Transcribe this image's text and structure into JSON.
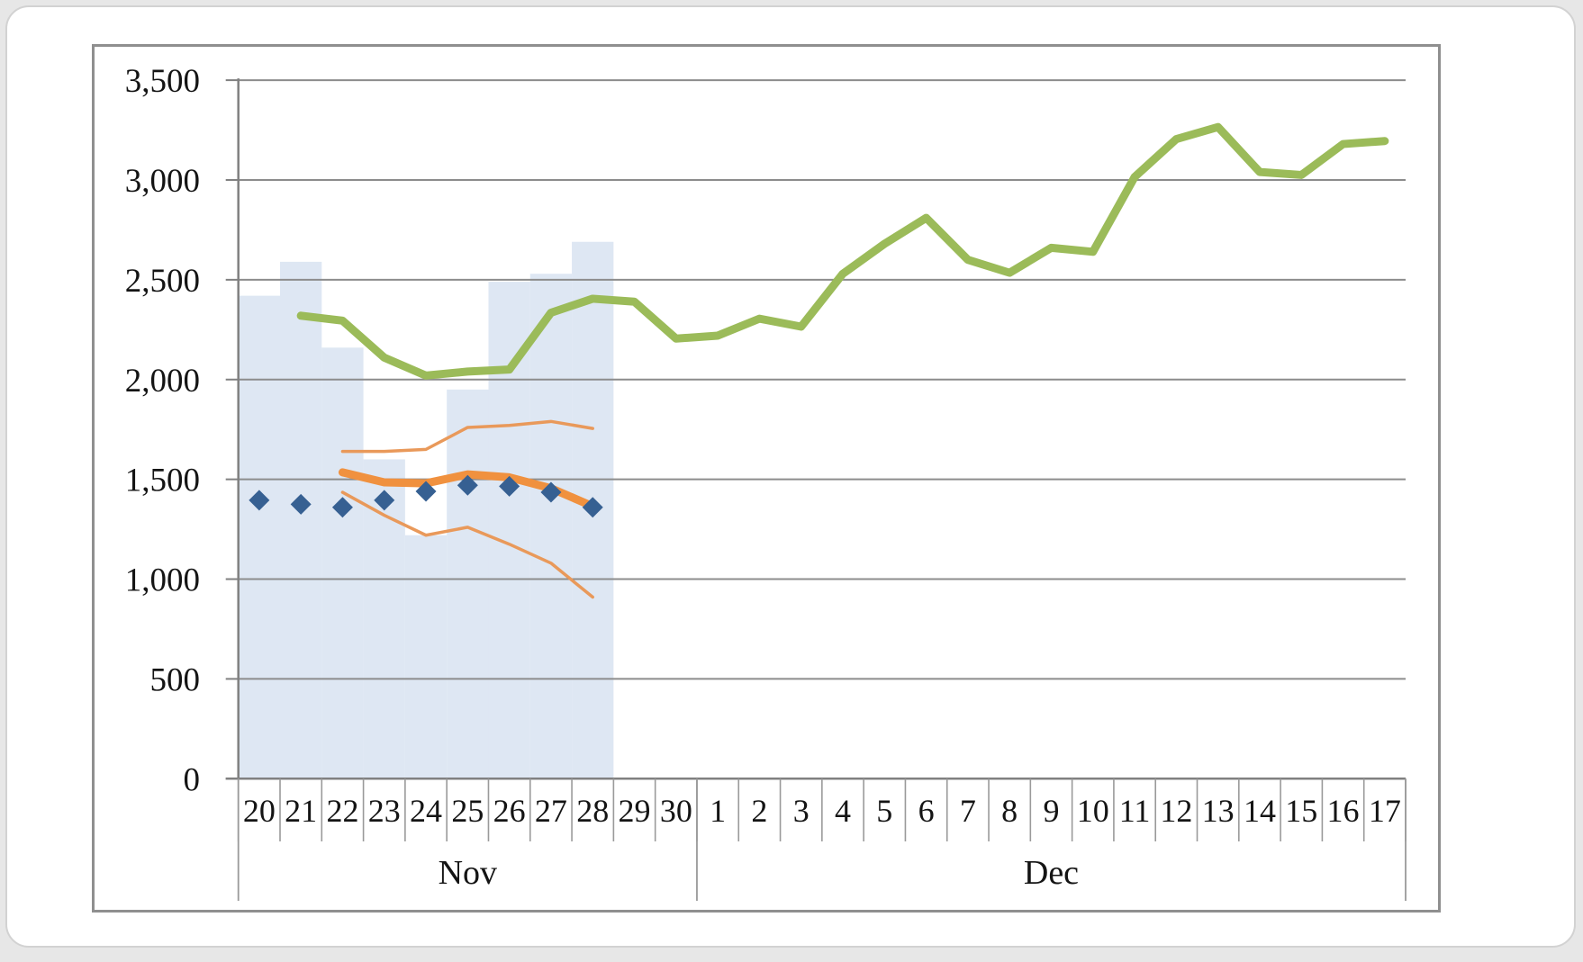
{
  "chart_data": {
    "type": "line",
    "title": "",
    "grid": true,
    "legend": false,
    "y_axis": {
      "min": 0,
      "max": 3500,
      "step": 500,
      "tick_labels": [
        "0",
        "500",
        "1,000",
        "1,500",
        "2,000",
        "2,500",
        "3,000",
        "3,500"
      ]
    },
    "x_axis": {
      "day_labels": [
        "20",
        "21",
        "22",
        "23",
        "24",
        "25",
        "26",
        "27",
        "28",
        "29",
        "30",
        "1",
        "2",
        "3",
        "4",
        "5",
        "6",
        "7",
        "8",
        "9",
        "10",
        "11",
        "12",
        "13",
        "14",
        "15",
        "16",
        "17"
      ],
      "month_groups": [
        {
          "label": "Nov",
          "start": 0,
          "count": 11
        },
        {
          "label": "Dec",
          "start": 11,
          "count": 17
        }
      ]
    },
    "colors": {
      "bar_fill": "rgba(214,225,240,0.8)",
      "gridline": "#8c8c8c",
      "axis": "#808080",
      "chart_border": "#8f8f8f",
      "actual_line": "#9bbb59",
      "forecast_line": "#f0913f",
      "band_line": "#e9995a",
      "diamond": "#366092"
    },
    "series": [
      {
        "name": "history-bars",
        "type": "bar",
        "color": "rgba(214,225,240,0.8)",
        "start_index": 0,
        "values": [
          2420,
          2590,
          2160,
          1600,
          1220,
          1950,
          2490,
          2530,
          2690
        ]
      },
      {
        "name": "upper-band-line",
        "type": "line",
        "color": "#e9995a",
        "width": 3.5,
        "start_index": 2,
        "values": [
          1640,
          1640,
          1650,
          1760,
          1770,
          1790,
          1755
        ]
      },
      {
        "name": "lower-band-line",
        "type": "line",
        "color": "#e9995a",
        "width": 3.5,
        "start_index": 2,
        "values": [
          1435,
          1320,
          1220,
          1260,
          1175,
          1080,
          910
        ]
      },
      {
        "name": "forecast-line",
        "type": "line",
        "color": "#f0913f",
        "width": 9,
        "start_index": 2,
        "values": [
          1535,
          1485,
          1480,
          1525,
          1510,
          1455,
          1365
        ]
      },
      {
        "name": "actual-line",
        "type": "line",
        "color": "#9bbb59",
        "width": 9,
        "start_index": 1,
        "values": [
          2320,
          2295,
          2110,
          2020,
          2040,
          2050,
          2335,
          2405,
          2390,
          2205,
          2220,
          2305,
          2265,
          2530,
          2680,
          2810,
          2600,
          2535,
          2660,
          2640,
          3015,
          3205,
          3265,
          3040,
          3025,
          3180,
          3195
        ]
      },
      {
        "name": "observed-diamonds",
        "type": "diamond",
        "color": "#366092",
        "size": 23,
        "start_index": 0,
        "values": [
          1395,
          1375,
          1360,
          1395,
          1440,
          1470,
          1465,
          1435,
          1360
        ]
      }
    ]
  }
}
